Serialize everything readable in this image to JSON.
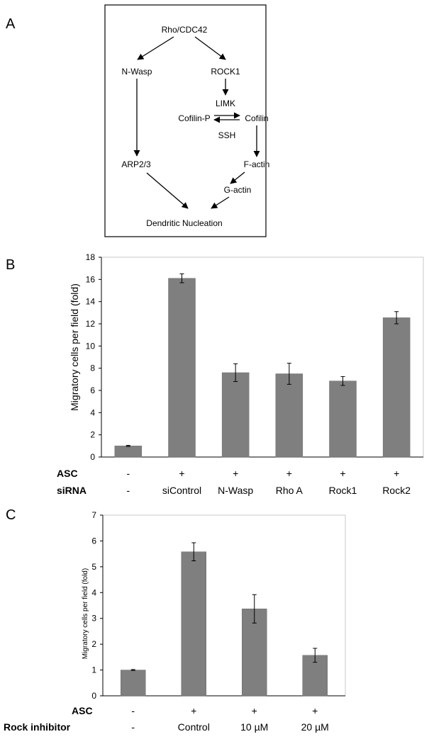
{
  "panels": {
    "a": "A",
    "b": "B",
    "c": "C"
  },
  "diagram": {
    "nodes": {
      "rho": "Rho/CDC42",
      "nwasp": "N-Wasp",
      "rock1": "ROCK1",
      "limk": "LIMK",
      "cofilin_p": "Cofilin-P",
      "cofilin": "Cofilin",
      "ssh": "SSH",
      "arp": "ARP2/3",
      "factin": "F-actin",
      "gactin": "G-actin",
      "dendritic": "Dendritic Nucleation"
    }
  },
  "chart_data": [
    {
      "type": "bar",
      "ylabel": "Migratory cells per field (fold)",
      "ylim": [
        0,
        18
      ],
      "yticks": [
        0,
        2,
        4,
        6,
        8,
        10,
        12,
        14,
        16,
        18
      ],
      "values": [
        1.0,
        16.1,
        7.6,
        7.5,
        6.85,
        12.55
      ],
      "errors": [
        0.05,
        0.4,
        0.8,
        0.95,
        0.4,
        0.55
      ],
      "bar_color": "#7f7f7f",
      "row_labels": [
        "ASC",
        "siRNA"
      ],
      "asc": [
        "-",
        "+",
        "+",
        "+",
        "+",
        "+"
      ],
      "sirna": [
        "-",
        "siControl",
        "N-Wasp",
        "Rho A",
        "Rock1",
        "Rock2"
      ]
    },
    {
      "type": "bar",
      "ylabel": "Migratory cells per field (fold)",
      "ylim": [
        0,
        7
      ],
      "yticks": [
        0,
        1,
        2,
        3,
        4,
        5,
        6,
        7
      ],
      "values": [
        1.0,
        5.58,
        3.37,
        1.57
      ],
      "errors": [
        0.02,
        0.35,
        0.55,
        0.27
      ],
      "bar_color": "#7f7f7f",
      "row_labels": [
        "ASC",
        "Rock inhibitor"
      ],
      "asc": [
        "-",
        "+",
        "+",
        "+"
      ],
      "inhibitor": [
        "-",
        "Control",
        "10 µM",
        "20 µM"
      ]
    }
  ]
}
